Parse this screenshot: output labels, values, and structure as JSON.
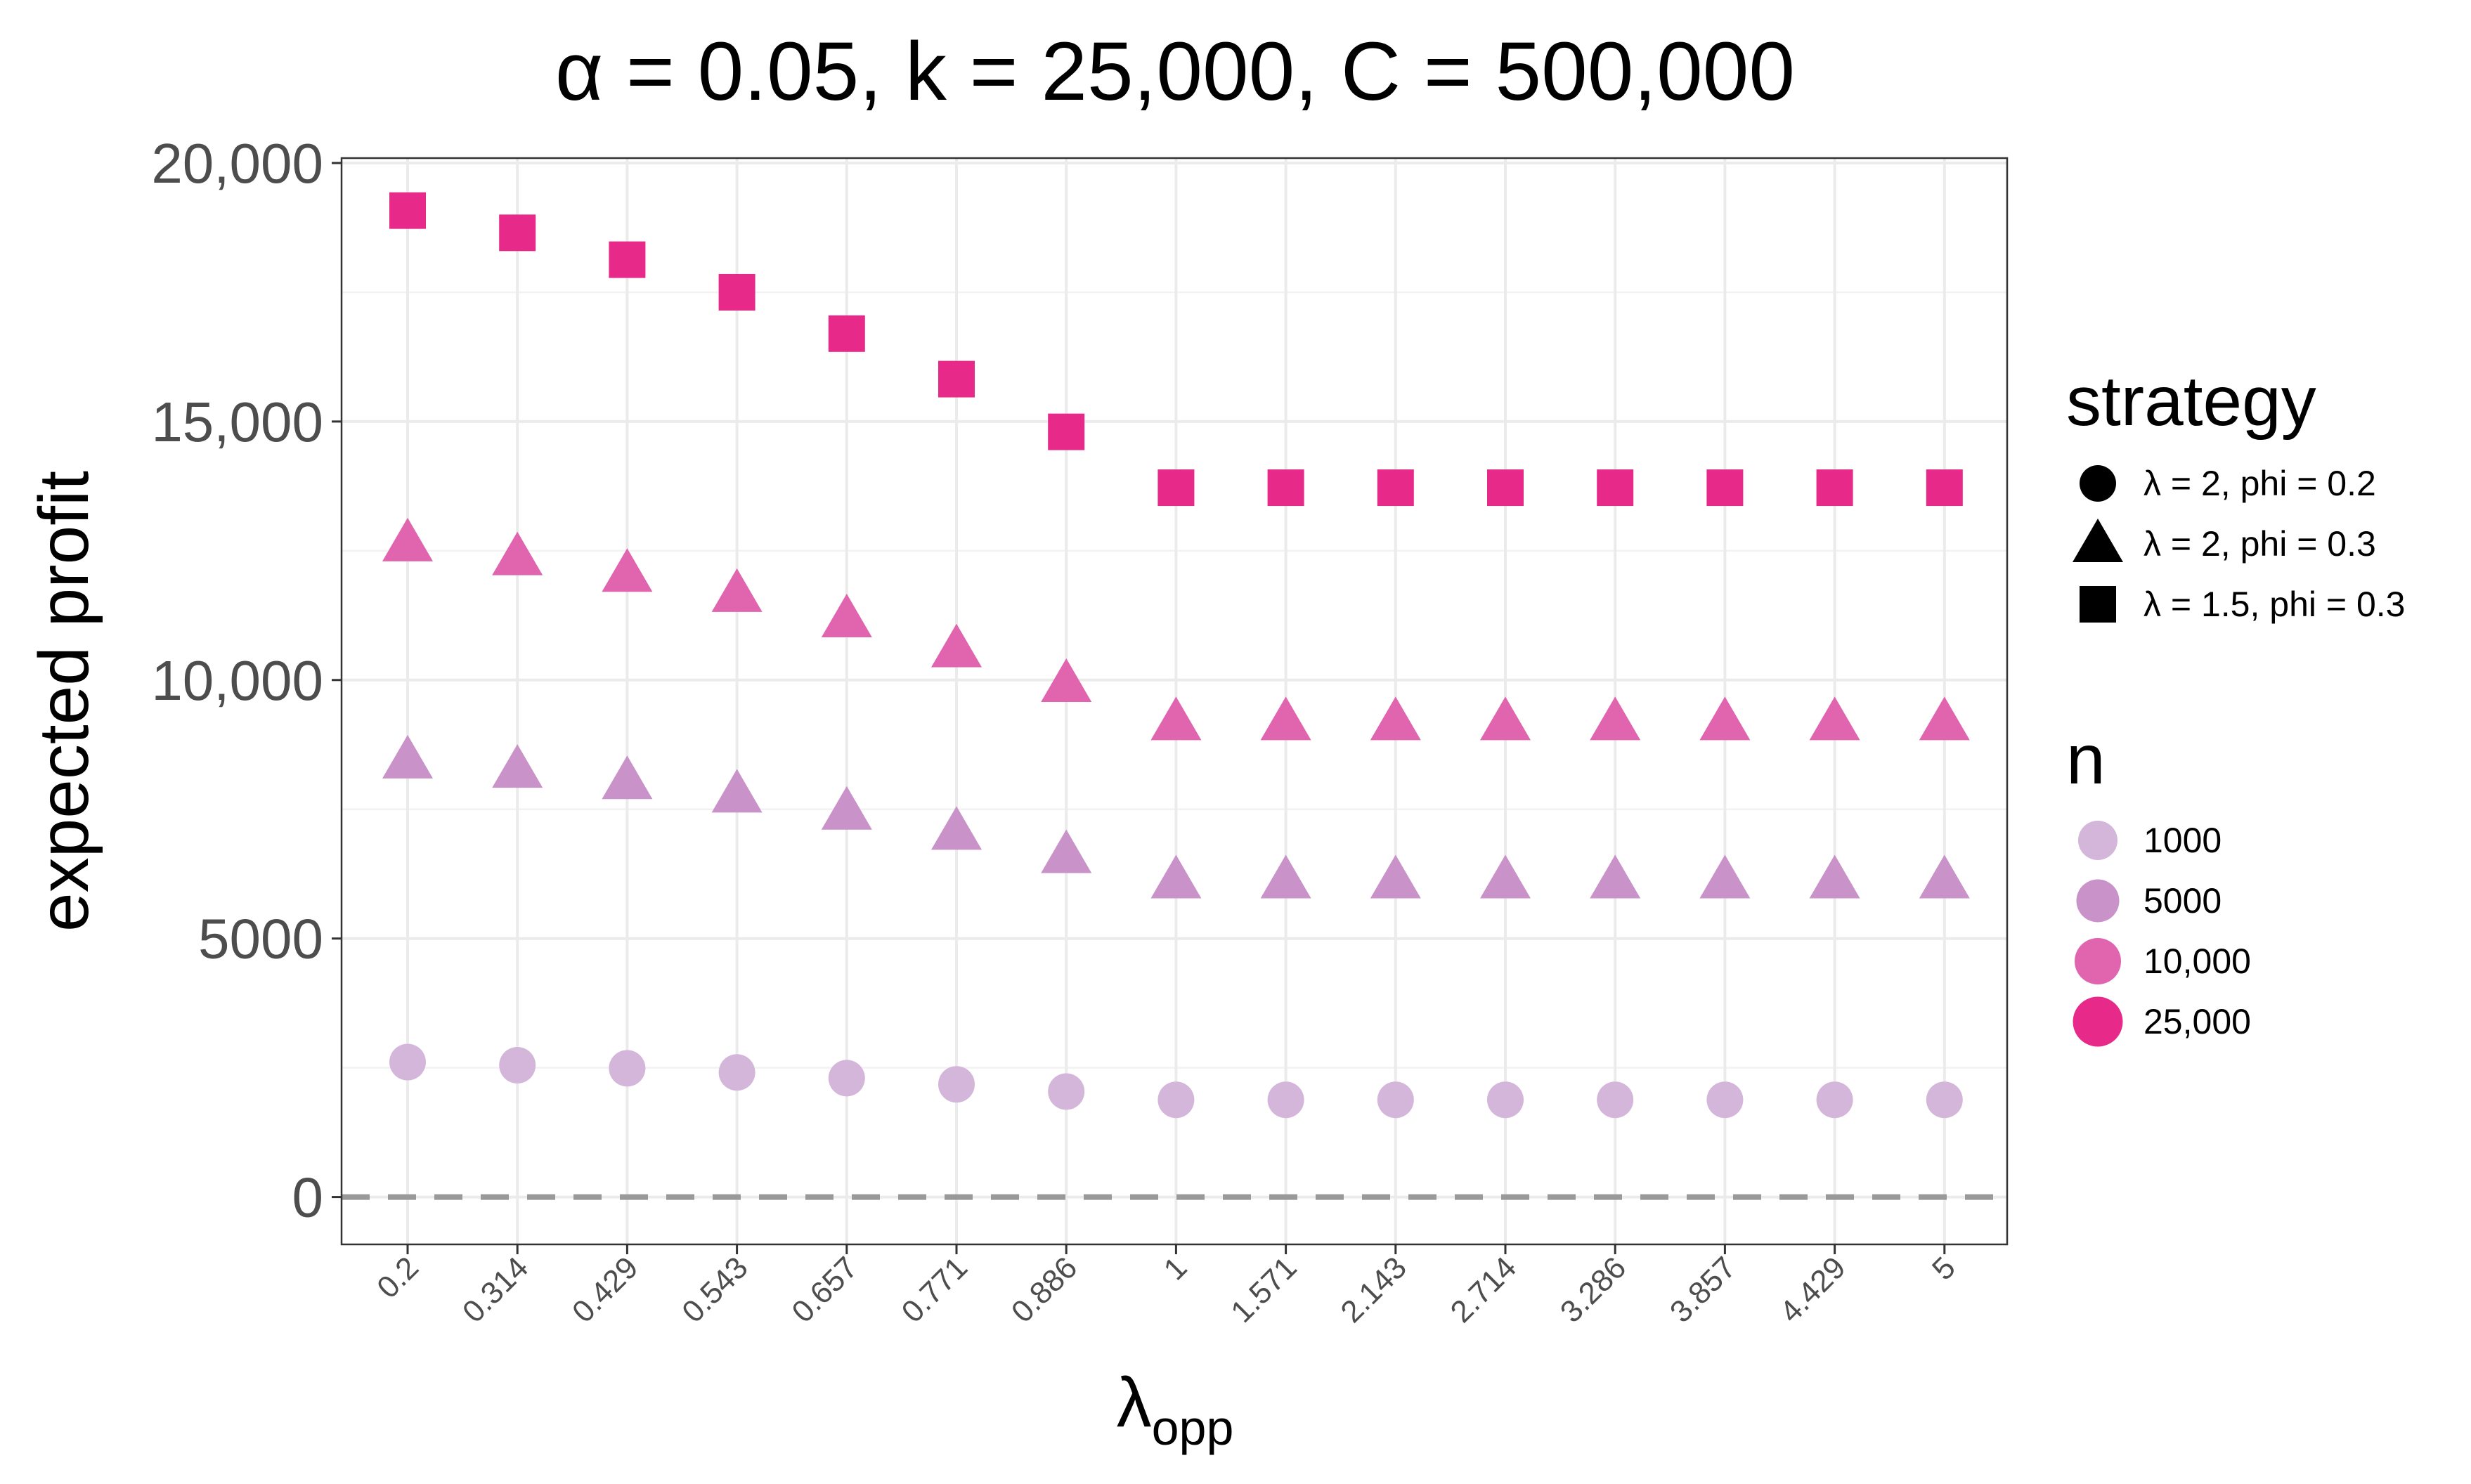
{
  "chart_data": {
    "type": "scatter",
    "title": "α = 0.05, k = 25,000, C = 500,000",
    "xlabel": "λ",
    "xlabel_subscript": "opp",
    "ylabel": "expected profit",
    "ylim": [
      -800,
      20000
    ],
    "yticks": [
      {
        "value": 0,
        "label": "0"
      },
      {
        "value": 5000,
        "label": "5000"
      },
      {
        "value": 10000,
        "label": "10,000"
      },
      {
        "value": 15000,
        "label": "15,000"
      },
      {
        "value": 20000,
        "label": "20,000"
      }
    ],
    "categories": [
      "0.2",
      "0.314",
      "0.429",
      "0.543",
      "0.657",
      "0.771",
      "0.886",
      "1",
      "1.571",
      "2.143",
      "2.714",
      "3.286",
      "3.857",
      "4.429",
      "5"
    ],
    "reference_line": {
      "y": 0,
      "style": "dashed",
      "color": "#999999"
    },
    "series": [
      {
        "strategy": "λ = 1.5, phi = 0.3",
        "n": "25,000",
        "shape": "square",
        "values": [
          19080,
          18650,
          18130,
          17500,
          16700,
          15820,
          14800,
          13720,
          13720,
          13720,
          13720,
          13720,
          13720,
          13720,
          13720
        ]
      },
      {
        "strategy": "λ = 2, phi = 0.3",
        "n": "10,000",
        "shape": "triangle",
        "values": [
          12650,
          12380,
          12060,
          11670,
          11180,
          10600,
          9930,
          9190,
          9190,
          9190,
          9190,
          9190,
          9190,
          9190,
          9190
        ]
      },
      {
        "strategy": "λ = 2, phi = 0.3",
        "n": "5000",
        "shape": "triangle",
        "values": [
          8450,
          8270,
          8050,
          7790,
          7460,
          7070,
          6620,
          6130,
          6130,
          6130,
          6130,
          6130,
          6130,
          6130,
          6130
        ]
      },
      {
        "strategy": "λ = 2, phi = 0.2",
        "n": "1000",
        "shape": "circle",
        "values": [
          2610,
          2550,
          2490,
          2410,
          2300,
          2180,
          2040,
          1880,
          1880,
          1880,
          1880,
          1880,
          1880,
          1880,
          1880
        ]
      }
    ],
    "legend": {
      "position": "right",
      "strategy_title": "strategy",
      "strategy_items": [
        {
          "shape": "circle",
          "label": "λ = 2, phi = 0.2"
        },
        {
          "shape": "triangle",
          "label": "λ = 2, phi = 0.3"
        },
        {
          "shape": "square",
          "label": "λ = 1.5, phi = 0.3"
        }
      ],
      "n_title": "n",
      "n_items": [
        {
          "label": "1000",
          "color": "#d4b6da"
        },
        {
          "label": "5000",
          "color": "#c992c8"
        },
        {
          "label": "10,000",
          "color": "#e064ae"
        },
        {
          "label": "25,000",
          "color": "#e72a8a"
        }
      ]
    },
    "grid": true
  }
}
